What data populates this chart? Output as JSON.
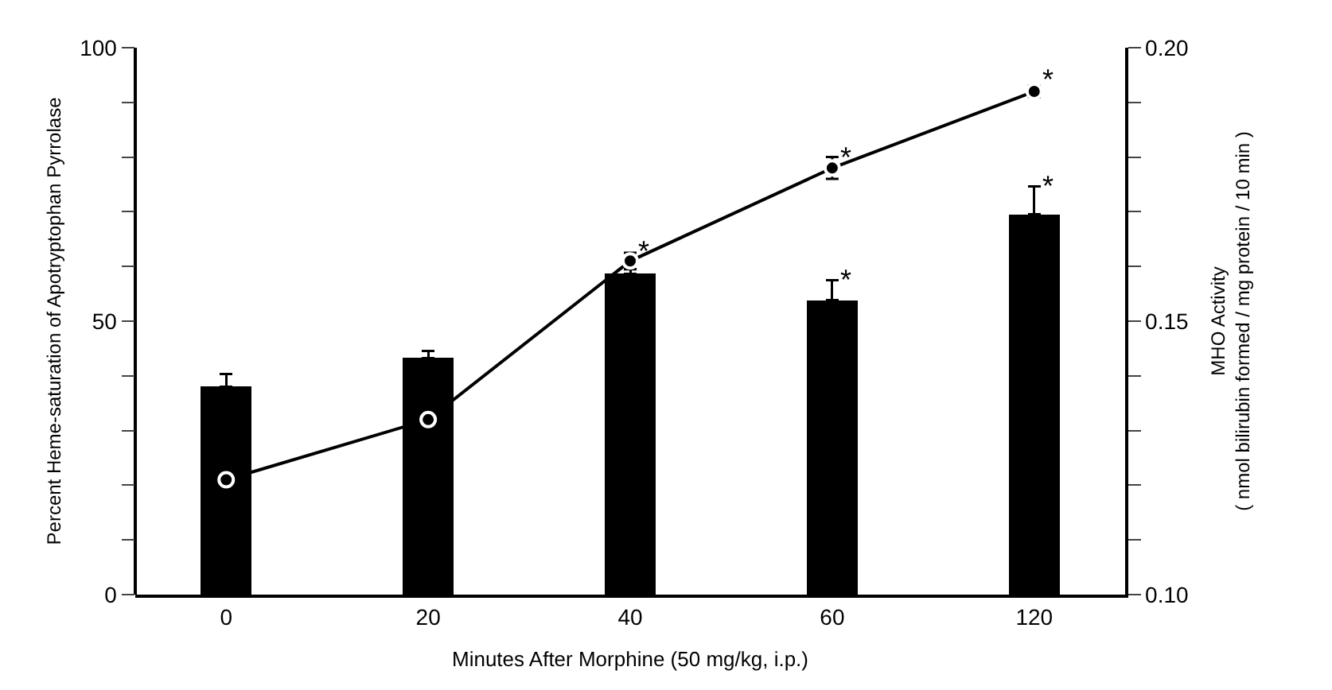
{
  "chart_data": {
    "type": "bar",
    "xlabel": "Minutes After Morphine (50 mg/kg, i.p.)",
    "ylabel": "Percent Heme-saturation of Apotryptophan Pyrrolase",
    "y2label": "MHO Activity\n( nmol bilirubin formed / mg protein / 10 min )",
    "categories": [
      "0",
      "20",
      "40",
      "60",
      "120"
    ],
    "series": [
      {
        "color": "#000000",
        "values": [
          38.0,
          43.2,
          58.7,
          53.8,
          69.6
        ],
        "errors": [
          [
            38.0,
            40.3
          ],
          [
            43.2,
            44.6
          ],
          [
            58.7,
            59.5
          ],
          [
            53.8,
            57.5
          ],
          [
            69.6,
            74.7
          ]
        ]
      },
      {
        "type": "line",
        "axis": "y2",
        "color": "#000000",
        "values": [
          0.121,
          0.132,
          0.161,
          0.178,
          0.192
        ],
        "errors": [
          0.002,
          0.002,
          0.0015,
          0.002,
          0.001
        ]
      }
    ],
    "ylim": [
      0,
      100
    ],
    "yticks": [
      0,
      {
        "value": 10,
        "label": null
      },
      {
        "value": 20,
        "label": null
      },
      {
        "value": 30,
        "label": null
      },
      {
        "value": 40,
        "label": null
      },
      50,
      {
        "value": 60,
        "label": null
      },
      {
        "value": 70,
        "label": null
      },
      {
        "value": 80,
        "label": null
      },
      {
        "value": 90,
        "label": null
      },
      100
    ],
    "y2lim": [
      0.1,
      0.2
    ],
    "y2ticks": [
      {
        "value": 0.1,
        "label": "0.10"
      },
      {
        "value": 0.11,
        "label": null
      },
      {
        "value": 0.12,
        "label": null
      },
      {
        "value": 0.13,
        "label": null
      },
      {
        "value": 0.14,
        "label": null
      },
      {
        "value": 0.15,
        "label": "0.15"
      },
      {
        "value": 0.16,
        "label": null
      },
      {
        "value": 0.17,
        "label": null
      },
      {
        "value": 0.18,
        "label": null
      },
      {
        "value": 0.19,
        "label": null
      },
      {
        "value": 0.2,
        "label": "0.20"
      }
    ],
    "annotations": [
      {
        "text": "*",
        "x": "40",
        "y": 62.8
      },
      {
        "text": "*",
        "x": "60",
        "y": 80.0
      },
      {
        "text": "*",
        "x": "120",
        "y": 94.3
      },
      {
        "text": "*",
        "x": "60",
        "y": 57.5
      },
      {
        "text": "*",
        "x": "120",
        "y": 74.7
      }
    ],
    "marker": "circle"
  }
}
